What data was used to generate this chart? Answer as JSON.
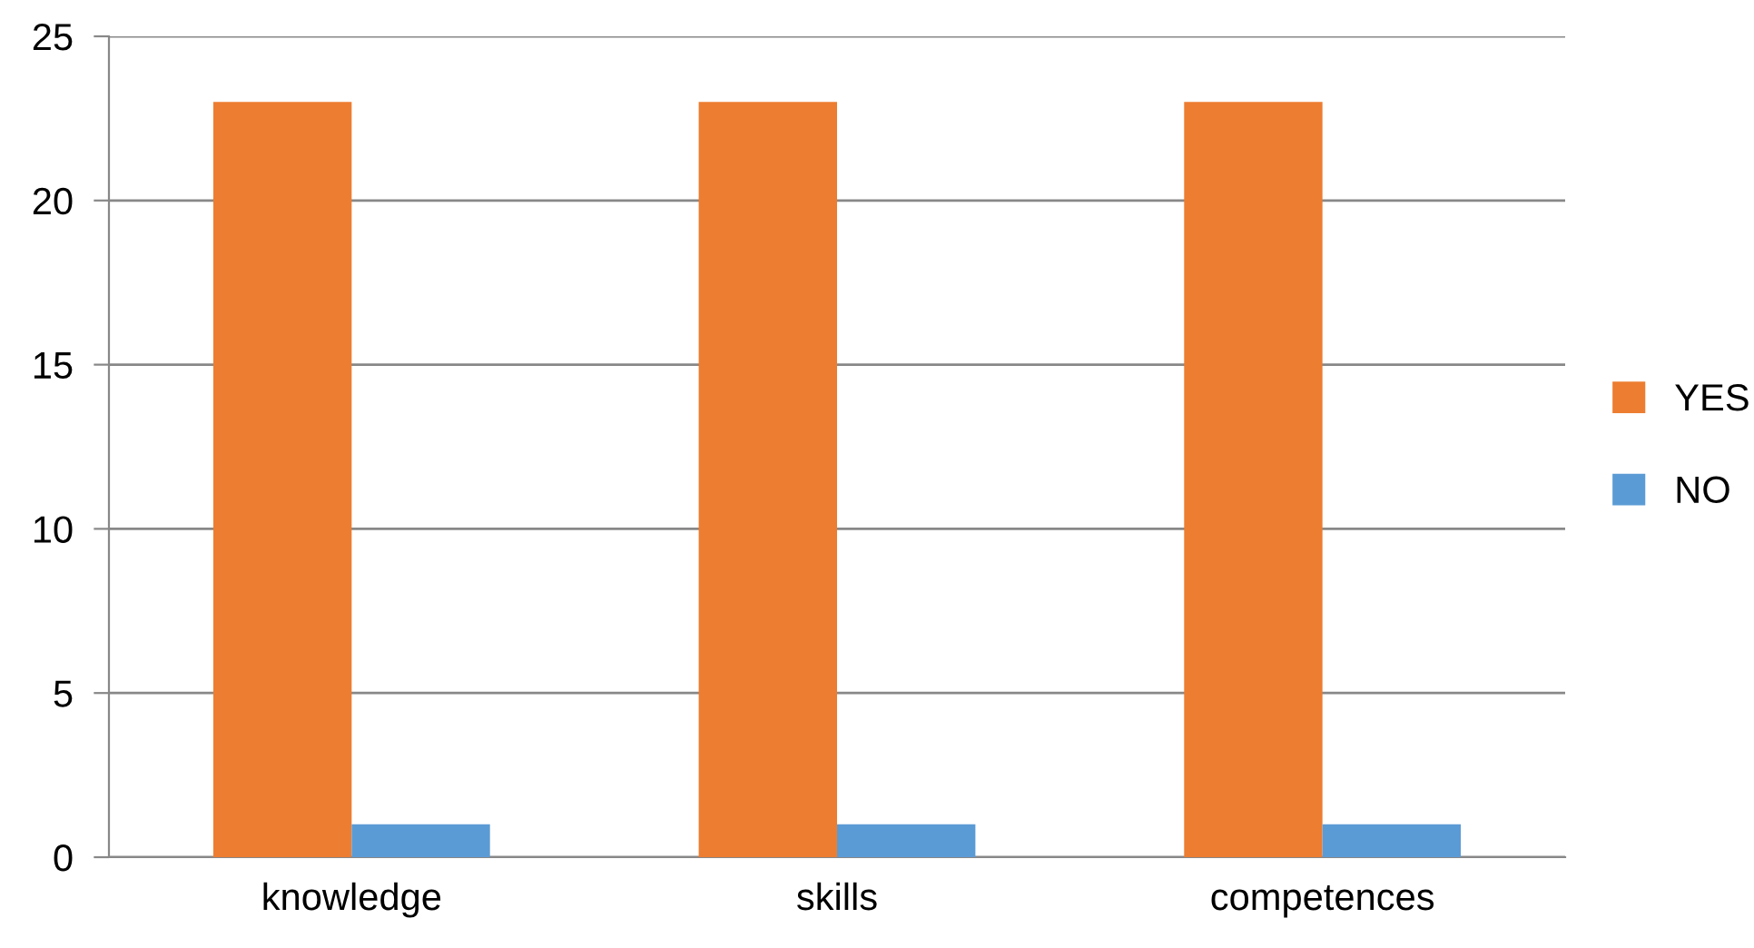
{
  "chart_data": {
    "type": "bar",
    "categories": [
      "knowledge",
      "skills",
      "competences"
    ],
    "series": [
      {
        "name": "YES",
        "color": "#ed7d31",
        "values": [
          23,
          23,
          23
        ]
      },
      {
        "name": "NO",
        "color": "#5b9bd5",
        "values": [
          1,
          1,
          1
        ]
      }
    ],
    "ylim": [
      0,
      25
    ],
    "yticks": [
      0,
      5,
      10,
      15,
      20,
      25
    ],
    "grid": "y",
    "legend": "right"
  }
}
